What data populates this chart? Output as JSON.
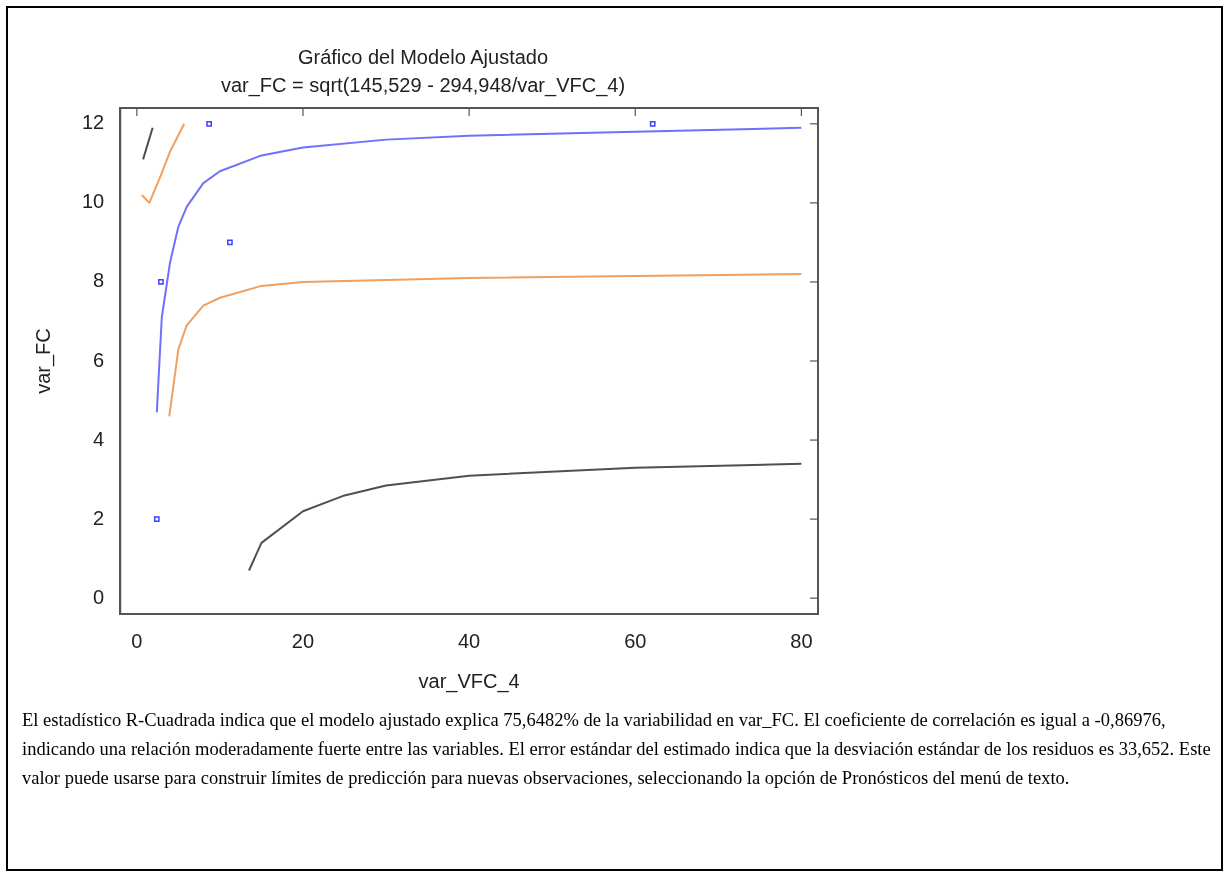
{
  "chart_data": {
    "type": "scatter",
    "title": "Gráfico del Modelo Ajustado",
    "subtitle": "var_FC = sqrt(145,529 - 294,948/var_VFC_4)",
    "xlabel": "var_VFC_4",
    "ylabel": "var_FC",
    "xlim": [
      -2,
      82
    ],
    "xticks": [
      0,
      20,
      40,
      60,
      80
    ],
    "ylim": [
      -0.4,
      12.4
    ],
    "yticks": [
      0,
      2,
      4,
      6,
      8,
      10,
      12
    ],
    "grid": false,
    "legend": false,
    "marker": "square",
    "series": [
      {
        "color": "#4040ff",
        "x": [
          2.4,
          2.9,
          8.7,
          11.2,
          62.1
        ],
        "values": [
          2,
          8,
          12,
          9,
          12
        ]
      },
      {
        "type": "line",
        "marker": "none",
        "color": "#7070ff",
        "x": [
          2.4,
          3,
          4,
          5,
          6,
          8,
          10,
          15,
          20,
          30,
          40,
          60,
          80
        ],
        "values": [
          4.7,
          7.1,
          8.5,
          9.4,
          9.9,
          10.5,
          10.8,
          11.2,
          11.4,
          11.6,
          11.7,
          11.8,
          11.9
        ]
      },
      {
        "type": "line",
        "marker": "none",
        "color": "#f0a060",
        "x": [
          0.6,
          1.5,
          2.9,
          4,
          5.7
        ],
        "values": [
          10.2,
          10,
          10.7,
          11.3,
          12
        ]
      },
      {
        "type": "line",
        "marker": "none",
        "color": "#f0a060",
        "x": [
          3.9,
          5,
          6,
          8,
          10,
          15,
          20,
          40,
          80
        ],
        "values": [
          4.6,
          6.3,
          6.9,
          7.4,
          7.6,
          7.9,
          8,
          8.1,
          8.2
        ]
      },
      {
        "type": "line",
        "marker": "none",
        "color": "#505050",
        "x": [
          0.75,
          1.9
        ],
        "values": [
          11.1,
          11.9
        ]
      },
      {
        "type": "line",
        "marker": "none",
        "color": "#505050",
        "x": [
          13.5,
          15,
          20,
          25,
          30,
          40,
          60,
          80
        ],
        "values": [
          0.7,
          1.4,
          2.2,
          2.6,
          2.85,
          3.1,
          3.3,
          3.4
        ]
      }
    ],
    "annotations": [
      "El estadístico R-Cuadrada indica que el modelo ajustado explica 75,6482% de la variabilidad en var_FC.  El coeficiente de correlación es igual a -0,86976, indicando una relación moderadamente fuerte entre las variables.  El error estándar del estimado indica que la desviación estándar de los residuos es 33,652.  Este valor puede usarse para construir límites de predicción para nuevas observaciones, seleccionando la opción de Pronósticos del menú de texto."
    ]
  }
}
